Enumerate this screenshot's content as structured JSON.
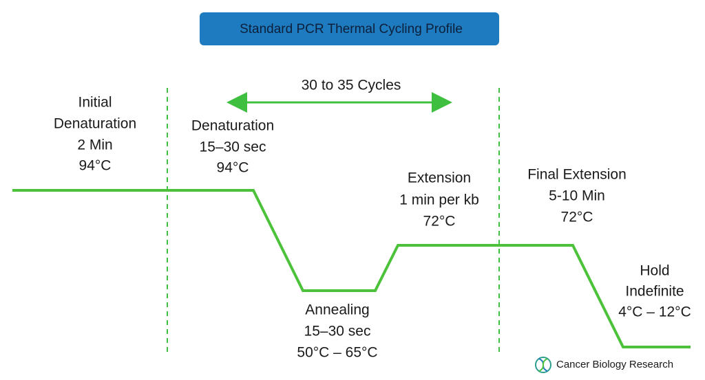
{
  "title": "Standard PCR Thermal Cycling Profile",
  "cycles_label": "30 to 35 Cycles",
  "stages": [
    {
      "lines": [
        "Initial",
        "Denaturation",
        "2 Min",
        "94°C"
      ]
    },
    {
      "lines": [
        "Denaturation",
        "15–30 sec",
        "94°C"
      ]
    },
    {
      "lines": [
        "Annealing",
        "15–30 sec",
        "50°C – 65°C"
      ]
    },
    {
      "lines": [
        "Extension",
        "1 min per kb",
        "72°C"
      ]
    },
    {
      "lines": [
        "Final Extension",
        "5-10 Min",
        "72°C"
      ]
    },
    {
      "lines": [
        "Hold",
        "Indefinite",
        "4°C – 12°C"
      ]
    }
  ],
  "brand": "Cancer Biology Research"
}
